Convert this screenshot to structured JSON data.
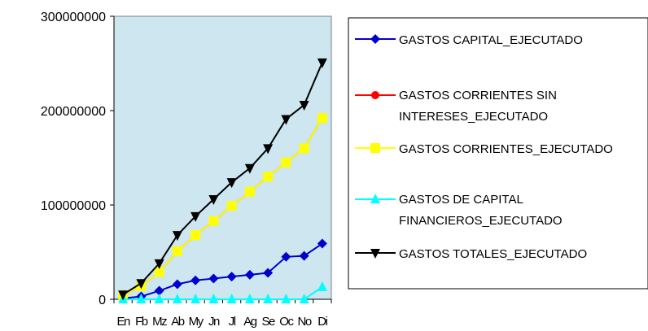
{
  "chart_data": {
    "type": "line",
    "categories": [
      "En",
      "Fb",
      "Mz",
      "Ab",
      "My",
      "Jn",
      "Jl",
      "Ag",
      "Se",
      "Oc",
      "No",
      "Di"
    ],
    "yticks": [
      "0",
      "100000000",
      "200000000",
      "300000000"
    ],
    "ylim": [
      0,
      300000000
    ],
    "grid": false,
    "plot_background": "#cde6ef",
    "legend_position": "right",
    "series": [
      {
        "name": "GASTOS CAPITAL_EJECUTADO",
        "color": "#0000cc",
        "marker": "diamond",
        "values": [
          1000000,
          3000000,
          9000000,
          16000000,
          20000000,
          22000000,
          24000000,
          26000000,
          28000000,
          45000000,
          46000000,
          59000000
        ]
      },
      {
        "name": "GASTOS CORRIENTES SIN INTERESES_EJECUTADO",
        "legend_lines": [
          "GASTOS CORRIENTES SIN",
          "INTERESES_EJECUTADO"
        ],
        "color": "#ff0000",
        "marker": "circle",
        "values": [
          4000000,
          14000000,
          29000000,
          51000000,
          68000000,
          83000000,
          99000000,
          114000000,
          130000000,
          145000000,
          160000000,
          192000000
        ]
      },
      {
        "name": "GASTOS CORRIENTES_EJECUTADO",
        "color": "#ffff00",
        "marker": "square",
        "values": [
          4000000,
          14000000,
          29000000,
          51000000,
          68000000,
          83000000,
          99000000,
          114000000,
          130000000,
          145000000,
          160000000,
          192000000
        ]
      },
      {
        "name": "GASTOS DE CAPITAL FINANCIEROS_EJECUTADO",
        "legend_lines": [
          "GASTOS DE CAPITAL",
          "FINANCIEROS_EJECUTADO"
        ],
        "color": "#00ffff",
        "marker": "triangle-up",
        "values": [
          0,
          0,
          0,
          0,
          0,
          0,
          0,
          0,
          0,
          0,
          0,
          13000000
        ]
      },
      {
        "name": "GASTOS TOTALES_EJECUTADO",
        "color": "#000000",
        "marker": "triangle-down",
        "values": [
          5000000,
          17000000,
          38000000,
          68000000,
          88000000,
          106000000,
          124000000,
          139000000,
          160000000,
          191000000,
          206000000,
          251000000
        ]
      }
    ]
  }
}
